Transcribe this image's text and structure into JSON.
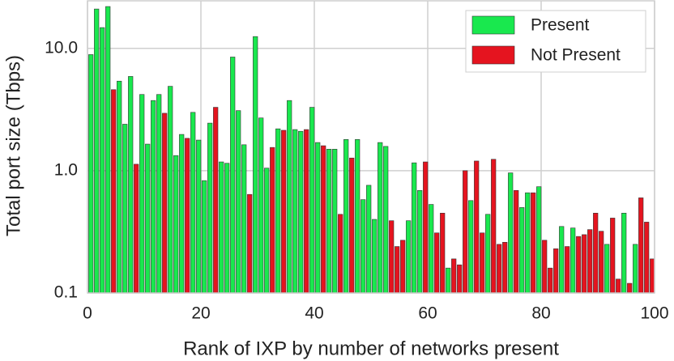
{
  "chart_data": {
    "type": "bar",
    "x_label": "Rank of IXP by number of networks present",
    "y_label": "Total port size (Tbps)",
    "x": [
      1,
      2,
      3,
      4,
      5,
      6,
      7,
      8,
      9,
      10,
      11,
      12,
      13,
      14,
      15,
      16,
      17,
      18,
      19,
      20,
      21,
      22,
      23,
      24,
      25,
      26,
      27,
      28,
      29,
      30,
      31,
      32,
      33,
      34,
      35,
      36,
      37,
      38,
      39,
      40,
      41,
      42,
      43,
      44,
      45,
      46,
      47,
      48,
      49,
      50,
      51,
      52,
      53,
      54,
      55,
      56,
      57,
      58,
      59,
      60,
      61,
      62,
      63,
      64,
      65,
      66,
      67,
      68,
      69,
      70,
      71,
      72,
      73,
      74,
      75,
      76,
      77,
      78,
      79,
      80,
      81,
      82,
      83,
      84,
      85,
      86,
      87,
      88,
      89,
      90,
      91,
      92,
      93,
      94,
      95,
      96,
      97,
      98,
      99,
      100
    ],
    "series": [
      {
        "name": "Present",
        "color": "#19e84e",
        "values": [
          8.9,
          21,
          14.8,
          22,
          null,
          5.4,
          2.4,
          5.9,
          null,
          4.2,
          1.65,
          3.75,
          4.2,
          null,
          4.9,
          1.33,
          1.98,
          null,
          3.0,
          1.78,
          0.83,
          2.45,
          null,
          1.18,
          1.15,
          8.5,
          3.1,
          1.63,
          null,
          12.5,
          2.7,
          1.05,
          null,
          2.2,
          null,
          3.75,
          2.17,
          2.1,
          null,
          3.3,
          1.7,
          null,
          1.5,
          1.5,
          null,
          1.8,
          null,
          1.8,
          0.58,
          0.76,
          0.4,
          1.7,
          1.58,
          null,
          null,
          null,
          0.39,
          1.16,
          0.69,
          null,
          0.53,
          null,
          null,
          0.16,
          null,
          null,
          null,
          0.57,
          null,
          null,
          0.44,
          null,
          null,
          null,
          0.96,
          null,
          0.5,
          0.66,
          null,
          0.74,
          null,
          null,
          null,
          0.35,
          null,
          0.34,
          null,
          null,
          null,
          null,
          null,
          0.25,
          null,
          null,
          0.45,
          null,
          0.25,
          null,
          null,
          null
        ]
      },
      {
        "name": "Not Present",
        "color": "#e5141f",
        "values": [
          null,
          null,
          null,
          null,
          4.6,
          null,
          null,
          null,
          1.13,
          null,
          null,
          null,
          null,
          2.95,
          null,
          null,
          null,
          1.84,
          null,
          null,
          null,
          null,
          3.3,
          null,
          null,
          null,
          null,
          null,
          0.64,
          null,
          null,
          null,
          1.55,
          null,
          2.14,
          null,
          null,
          null,
          2.17,
          null,
          null,
          1.6,
          null,
          null,
          0.44,
          null,
          1.27,
          null,
          null,
          null,
          null,
          null,
          null,
          0.39,
          0.24,
          0.27,
          null,
          null,
          null,
          1.18,
          null,
          0.31,
          0.45,
          null,
          0.19,
          0.17,
          1.0,
          null,
          1.2,
          0.31,
          null,
          1.24,
          0.25,
          0.26,
          null,
          0.69,
          null,
          null,
          0.66,
          null,
          0.27,
          0.16,
          0.23,
          null,
          0.24,
          null,
          0.29,
          0.3,
          0.33,
          0.45,
          0.32,
          null,
          0.41,
          0.13,
          null,
          0.12,
          null,
          0.6,
          0.38,
          0.19
        ]
      }
    ],
    "xlim": [
      0,
      100
    ],
    "xticks": [
      0,
      20,
      40,
      60,
      80,
      100
    ],
    "ylim": [
      0.1,
      24.5
    ],
    "yticks": [
      0.1,
      {
        "value": 1,
        "label": "1.0"
      },
      {
        "value": 10,
        "label": "10.0"
      }
    ],
    "log_y": true,
    "grid": true,
    "legend": "upper right"
  }
}
